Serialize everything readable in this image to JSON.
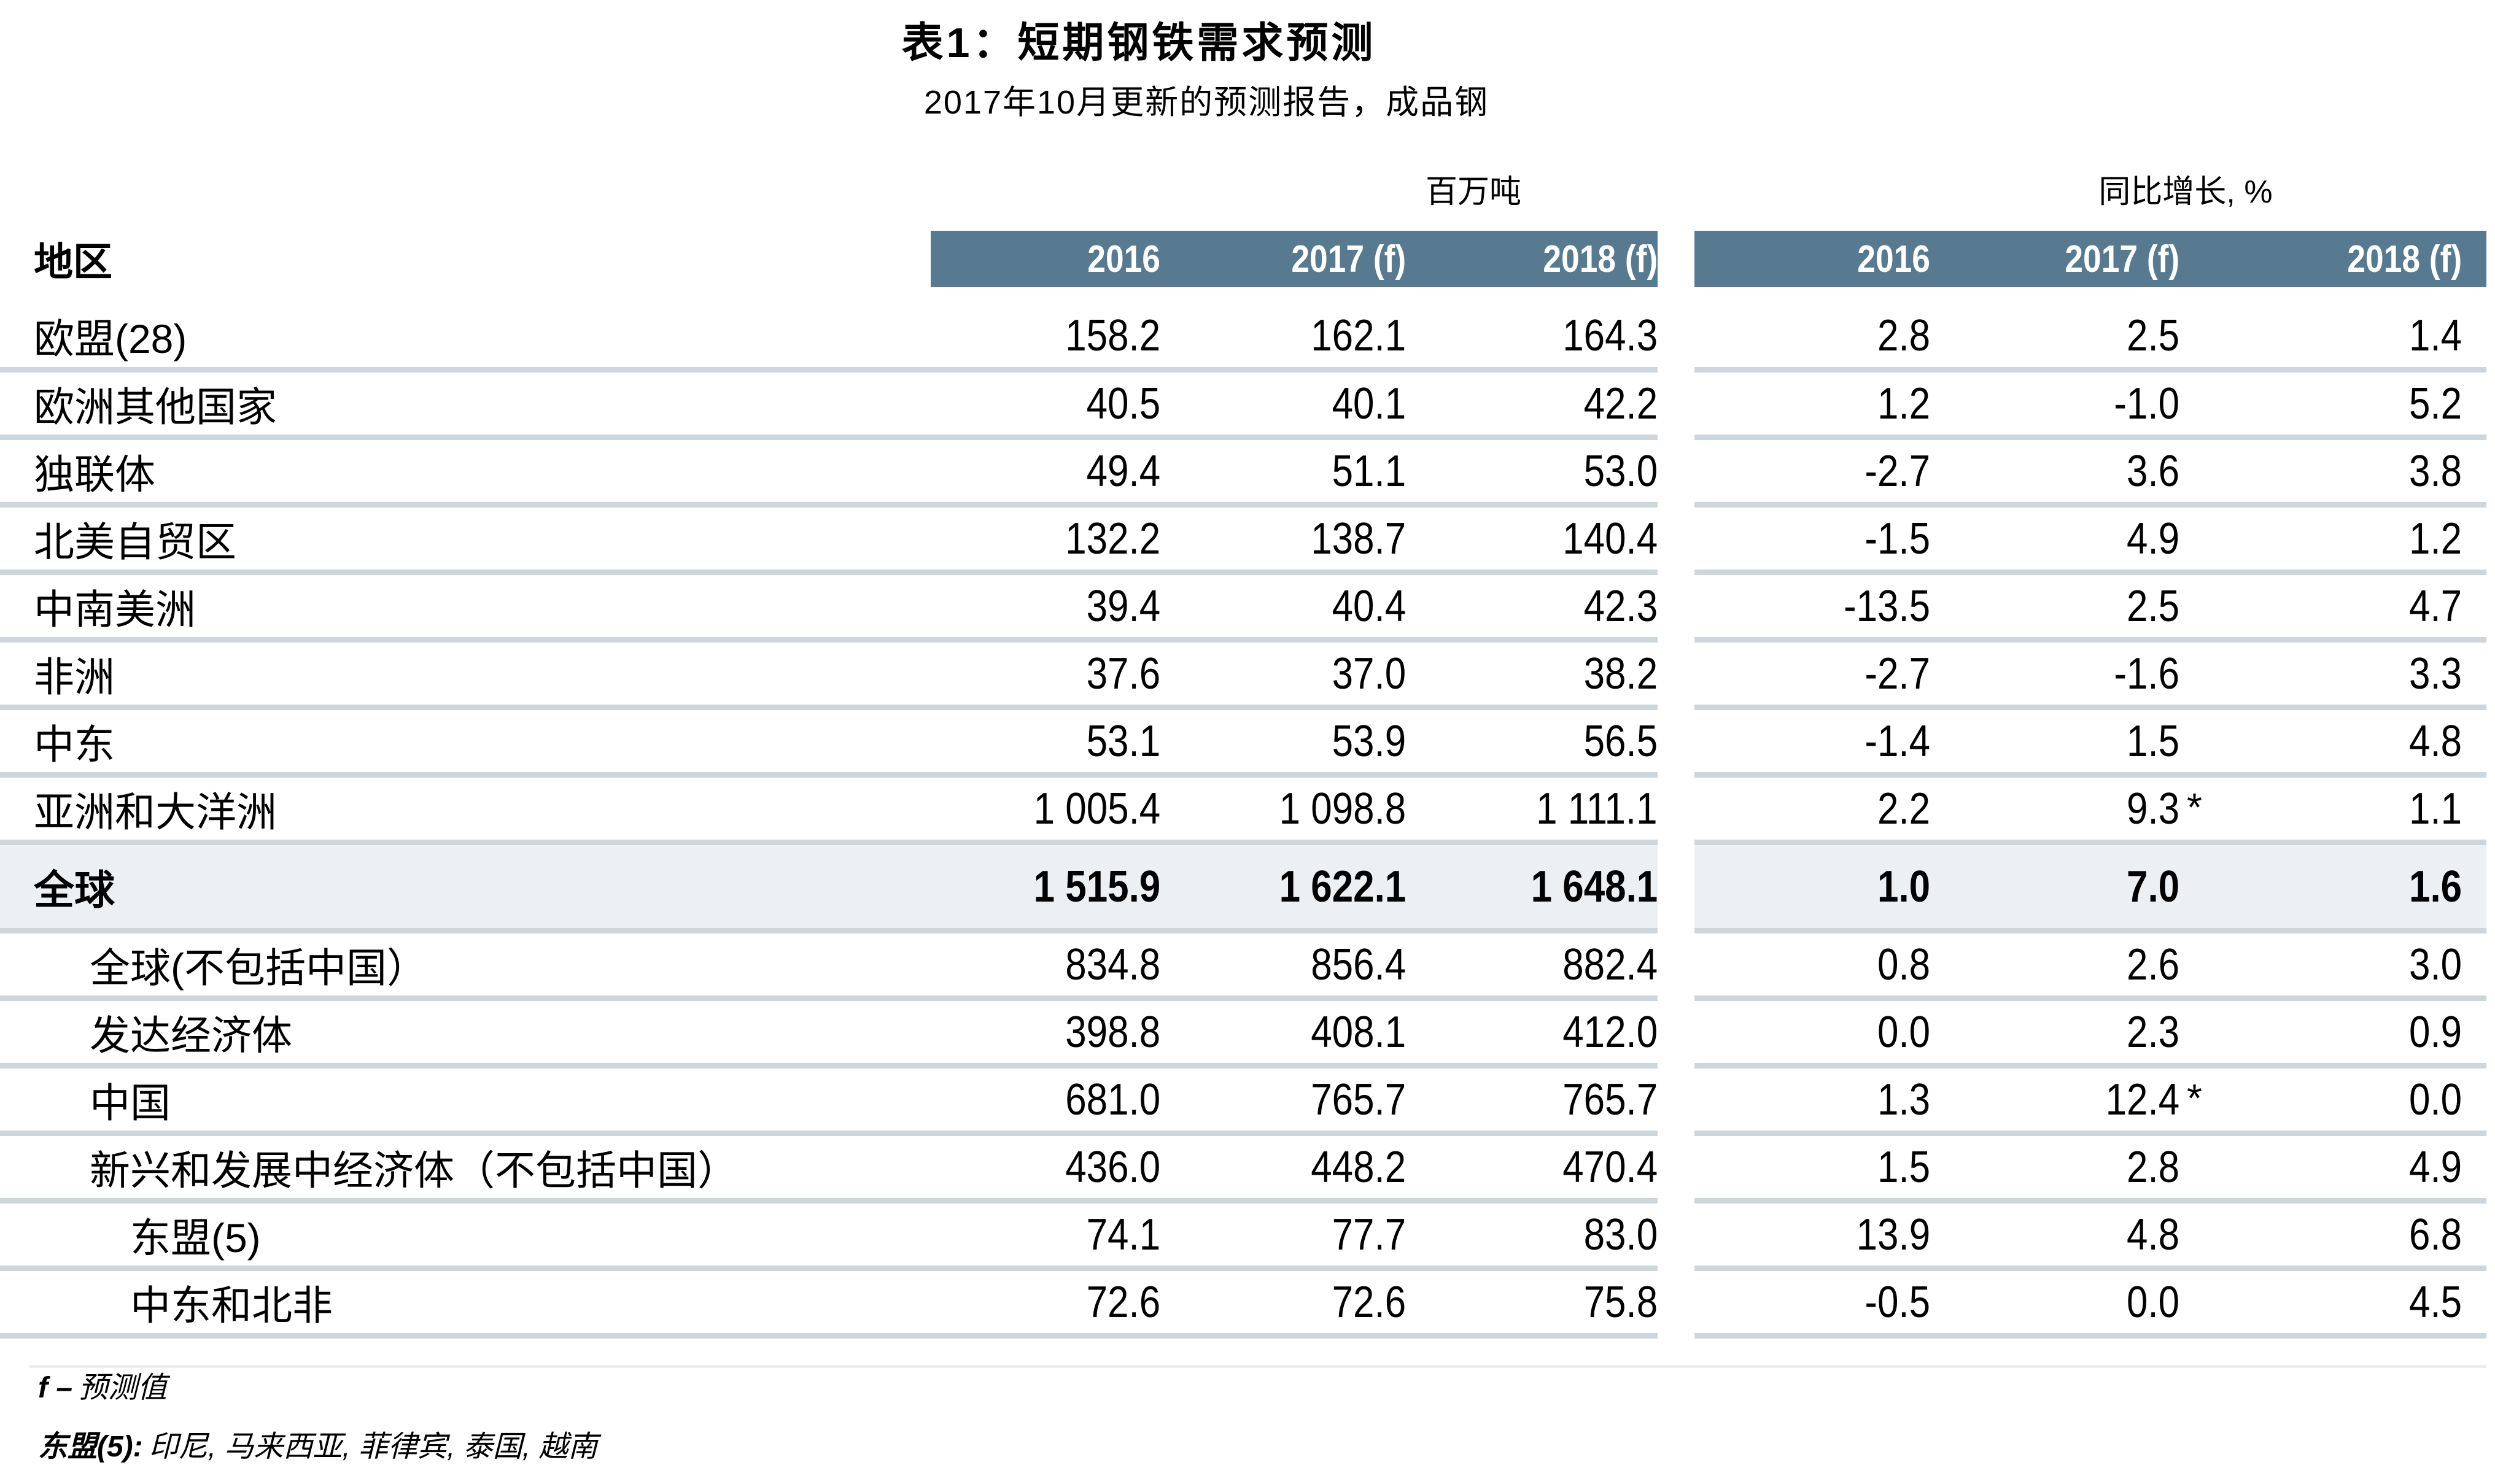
{
  "title": "表1：短期钢铁需求预测",
  "subtitle": "2017年10月更新的预测报告，成品钢",
  "region_header": "地区",
  "star_symbol": "*",
  "group1": {
    "unit": "百万吨",
    "years": [
      "2016",
      "2017 (f)",
      "2018 (f)"
    ]
  },
  "group2": {
    "unit": "同比增长, %",
    "years": [
      "2016",
      "2017 (f)",
      "2018 (f)"
    ]
  },
  "rows": [
    {
      "label": "欧盟(28)",
      "indent": 0,
      "mt": [
        "158.2",
        "162.1",
        "164.3"
      ],
      "yoy": [
        "2.8",
        "2.5",
        "1.4"
      ],
      "yoy_2017_star": false
    },
    {
      "label": "欧洲其他国家",
      "indent": 0,
      "mt": [
        "40.5",
        "40.1",
        "42.2"
      ],
      "yoy": [
        "1.2",
        "-1.0",
        "5.2"
      ],
      "yoy_2017_star": false
    },
    {
      "label": "独联体",
      "indent": 0,
      "mt": [
        "49.4",
        "51.1",
        "53.0"
      ],
      "yoy": [
        "-2.7",
        "3.6",
        "3.8"
      ],
      "yoy_2017_star": false
    },
    {
      "label": "北美自贸区",
      "indent": 0,
      "mt": [
        "132.2",
        "138.7",
        "140.4"
      ],
      "yoy": [
        "-1.5",
        "4.9",
        "1.2"
      ],
      "yoy_2017_star": false
    },
    {
      "label": "中南美洲",
      "indent": 0,
      "mt": [
        "39.4",
        "40.4",
        "42.3"
      ],
      "yoy": [
        "-13.5",
        "2.5",
        "4.7"
      ],
      "yoy_2017_star": false
    },
    {
      "label": "非洲",
      "indent": 0,
      "mt": [
        "37.6",
        "37.0",
        "38.2"
      ],
      "yoy": [
        "-2.7",
        "-1.6",
        "3.3"
      ],
      "yoy_2017_star": false
    },
    {
      "label": "中东",
      "indent": 0,
      "mt": [
        "53.1",
        "53.9",
        "56.5"
      ],
      "yoy": [
        "-1.4",
        "1.5",
        "4.8"
      ],
      "yoy_2017_star": false
    },
    {
      "label": "亚洲和大洋洲",
      "indent": 0,
      "mt": [
        "1 005.4",
        "1 098.8",
        "1 111.1"
      ],
      "yoy": [
        "2.2",
        "9.3",
        "1.1"
      ],
      "yoy_2017_star": true
    },
    {
      "label": "全球",
      "indent": 0,
      "emphasis": true,
      "mt": [
        "1 515.9",
        "1 622.1",
        "1 648.1"
      ],
      "yoy": [
        "1.0",
        "7.0",
        "1.6"
      ],
      "yoy_2017_star": true
    },
    {
      "label": "全球(不包括中国）",
      "indent": 1,
      "mt": [
        "834.8",
        "856.4",
        "882.4"
      ],
      "yoy": [
        "0.8",
        "2.6",
        "3.0"
      ],
      "yoy_2017_star": false
    },
    {
      "label": "发达经济体",
      "indent": 1,
      "mt": [
        "398.8",
        "408.1",
        "412.0"
      ],
      "yoy": [
        "0.0",
        "2.3",
        "0.9"
      ],
      "yoy_2017_star": false
    },
    {
      "label": "中国",
      "indent": 1,
      "mt": [
        "681.0",
        "765.7",
        "765.7"
      ],
      "yoy": [
        "1.3",
        "12.4",
        "0.0"
      ],
      "yoy_2017_star": true
    },
    {
      "label": "新兴和发展中经济体（不包括中国）",
      "indent": 1,
      "mt": [
        "436.0",
        "448.2",
        "470.4"
      ],
      "yoy": [
        "1.5",
        "2.8",
        "4.9"
      ],
      "yoy_2017_star": false
    },
    {
      "label": "东盟(5)",
      "indent": 2,
      "mt": [
        "74.1",
        "77.7",
        "83.0"
      ],
      "yoy": [
        "13.9",
        "4.8",
        "6.8"
      ],
      "yoy_2017_star": false
    },
    {
      "label": "中东和北非",
      "indent": 2,
      "mt": [
        "72.6",
        "72.6",
        "75.8"
      ],
      "yoy": [
        "-0.5",
        "0.0",
        "4.5"
      ],
      "yoy_2017_star": false
    }
  ],
  "footnotes": {
    "line1_prefix": "f –",
    "line1_text": "预测值",
    "line2_prefix": "东盟(5):",
    "line2_text": "印尼, 马来西亚, 菲律宾, 泰国, 越南"
  },
  "colors": {
    "header_bar": "#587a90",
    "header_text": "#ffffff",
    "divider": "#ccd6db",
    "row_shade": "#edf0f3",
    "bottom_accent": "#e8eef1"
  }
}
